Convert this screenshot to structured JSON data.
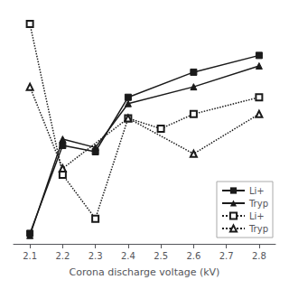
{
  "chart_data": {
    "type": "line",
    "xlabel": "Corona discharge voltage (kV)",
    "xlim": [
      2.05,
      2.85
    ],
    "xticks": [
      2.1,
      2.2,
      2.3,
      2.4,
      2.5,
      2.6,
      2.7,
      2.8
    ],
    "ylim": [
      0,
      110
    ],
    "tick_labels": "x",
    "grid": false,
    "legend": "lower right",
    "series": [
      {
        "name": "Li+",
        "color": "#1a1a1a",
        "line_style": "solid",
        "marker": "square",
        "x": [
          2.1,
          2.2,
          2.3,
          2.4,
          2.6,
          2.8
        ],
        "values": [
          5,
          47,
          44,
          70,
          82,
          90
        ]
      },
      {
        "name": "Tryp",
        "color": "#1a1a1a",
        "line_style": "solid",
        "marker": "triangle",
        "x": [
          2.1,
          2.2,
          2.3,
          2.4,
          2.6,
          2.8
        ],
        "values": [
          4,
          50,
          46,
          67,
          75,
          85
        ]
      },
      {
        "name": "Li+",
        "color": "#1a1a1a",
        "line_style": "dotted",
        "marker": "open_square",
        "x": [
          2.1,
          2.2,
          2.3,
          2.4,
          2.5,
          2.6,
          2.8
        ],
        "values": [
          105,
          33,
          12,
          60,
          55,
          62,
          70
        ]
      },
      {
        "name": "Tryp",
        "color": "#1a1a1a",
        "line_style": "dotted",
        "marker": "open_triangle",
        "x": [
          2.1,
          2.2,
          2.4,
          2.6,
          2.8
        ],
        "values": [
          75,
          36,
          60,
          43,
          62
        ]
      }
    ]
  }
}
